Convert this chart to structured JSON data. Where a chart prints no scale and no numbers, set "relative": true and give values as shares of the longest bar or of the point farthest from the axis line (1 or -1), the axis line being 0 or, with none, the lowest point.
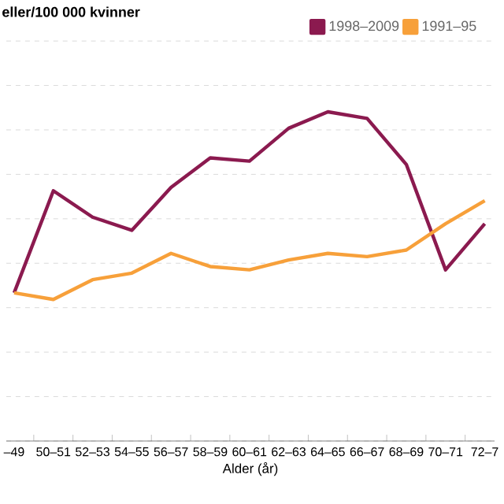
{
  "chart_data": {
    "type": "line",
    "relative": true,
    "annotations": [
      "eller/100 000 kvinner"
    ],
    "xlabel": "Alder (år)",
    "categories": [
      "–49",
      "50–51",
      "52–53",
      "54–55",
      "56–57",
      "58–59",
      "60–61",
      "62–63",
      "64–65",
      "66–67",
      "68–69",
      "70–71",
      "72–7"
    ],
    "series": [
      {
        "name": "1998–2009",
        "color": "#8b1a4f",
        "values": [
          0.45,
          0.76,
          0.68,
          0.64,
          0.77,
          0.86,
          0.85,
          0.95,
          1,
          0.98,
          0.84,
          0.52,
          0.66
        ]
      },
      {
        "name": "1991–95",
        "color": "#f7a03a",
        "values": [
          0.45,
          0.43,
          0.49,
          0.51,
          0.57,
          0.53,
          0.52,
          0.55,
          0.57,
          0.56,
          0.58,
          0.66,
          0.73
        ]
      }
    ],
    "grid": "y",
    "legend": "top",
    "marker": "none",
    "line_style": "solid"
  }
}
